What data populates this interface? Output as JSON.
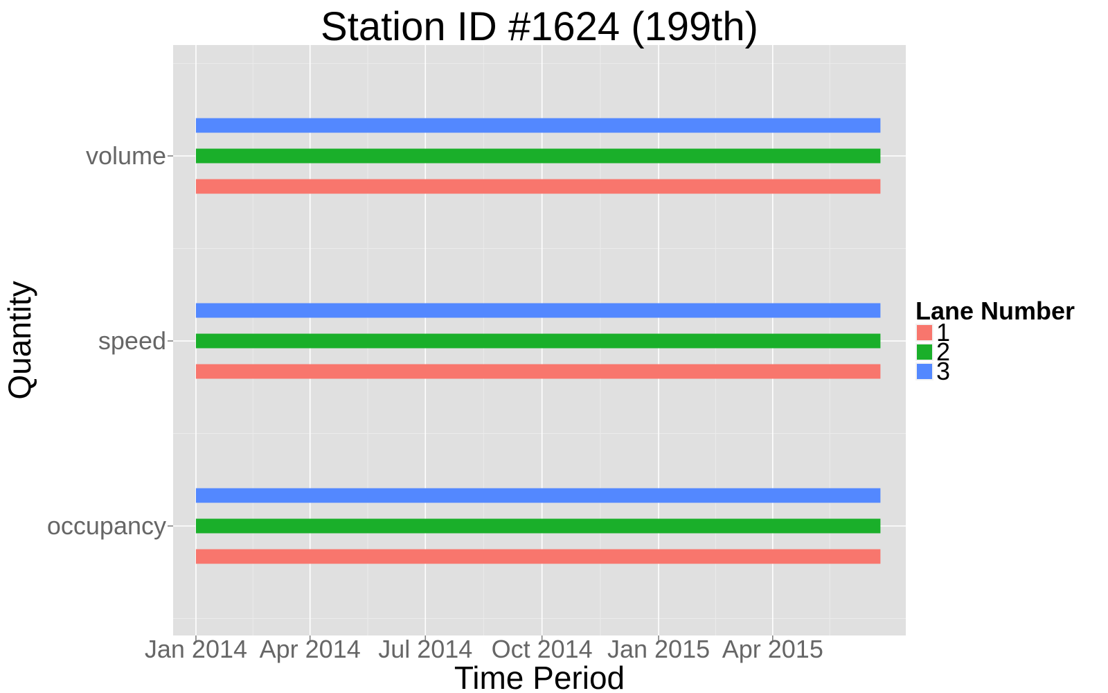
{
  "chart_data": {
    "type": "bar",
    "orientation": "horizontal-segments",
    "title": "Station ID #1624 (199th)",
    "xlabel": "Time Period",
    "ylabel": "Quantity",
    "x_ticks": [
      "2014-01-01",
      "2014-04-01",
      "2014-07-01",
      "2014-10-01",
      "2015-01-01",
      "2015-04-01"
    ],
    "x_tick_labels": [
      "Jan 2014",
      "Apr 2014",
      "Jul 2014",
      "Oct 2014",
      "Jan 2015",
      "Apr 2015"
    ],
    "xlim": [
      "2013-12-14",
      "2015-07-15"
    ],
    "categories": [
      "occupancy",
      "speed",
      "volume"
    ],
    "legend": {
      "title": "Lane Number",
      "position": "right",
      "entries": [
        "1",
        "2",
        "3"
      ]
    },
    "series": [
      {
        "name": "1",
        "color": "#F8766D",
        "segments": [
          {
            "category": "volume",
            "start": "2014-01-01",
            "end": "2015-06-25"
          },
          {
            "category": "speed",
            "start": "2014-01-01",
            "end": "2015-06-25"
          },
          {
            "category": "occupancy",
            "start": "2014-01-01",
            "end": "2015-06-25"
          }
        ]
      },
      {
        "name": "2",
        "color": "#1AAF2A",
        "segments": [
          {
            "category": "volume",
            "start": "2014-01-01",
            "end": "2015-06-25"
          },
          {
            "category": "speed",
            "start": "2014-01-01",
            "end": "2015-06-25"
          },
          {
            "category": "occupancy",
            "start": "2014-01-01",
            "end": "2015-06-25"
          }
        ]
      },
      {
        "name": "3",
        "color": "#5388FF",
        "segments": [
          {
            "category": "volume",
            "start": "2014-01-01",
            "end": "2015-06-25"
          },
          {
            "category": "speed",
            "start": "2014-01-01",
            "end": "2015-06-25"
          },
          {
            "category": "occupancy",
            "start": "2014-01-01",
            "end": "2015-06-25"
          }
        ]
      }
    ],
    "grid": true,
    "panel_background": "#E0E0E0",
    "grid_color": "#FFFFFF"
  }
}
